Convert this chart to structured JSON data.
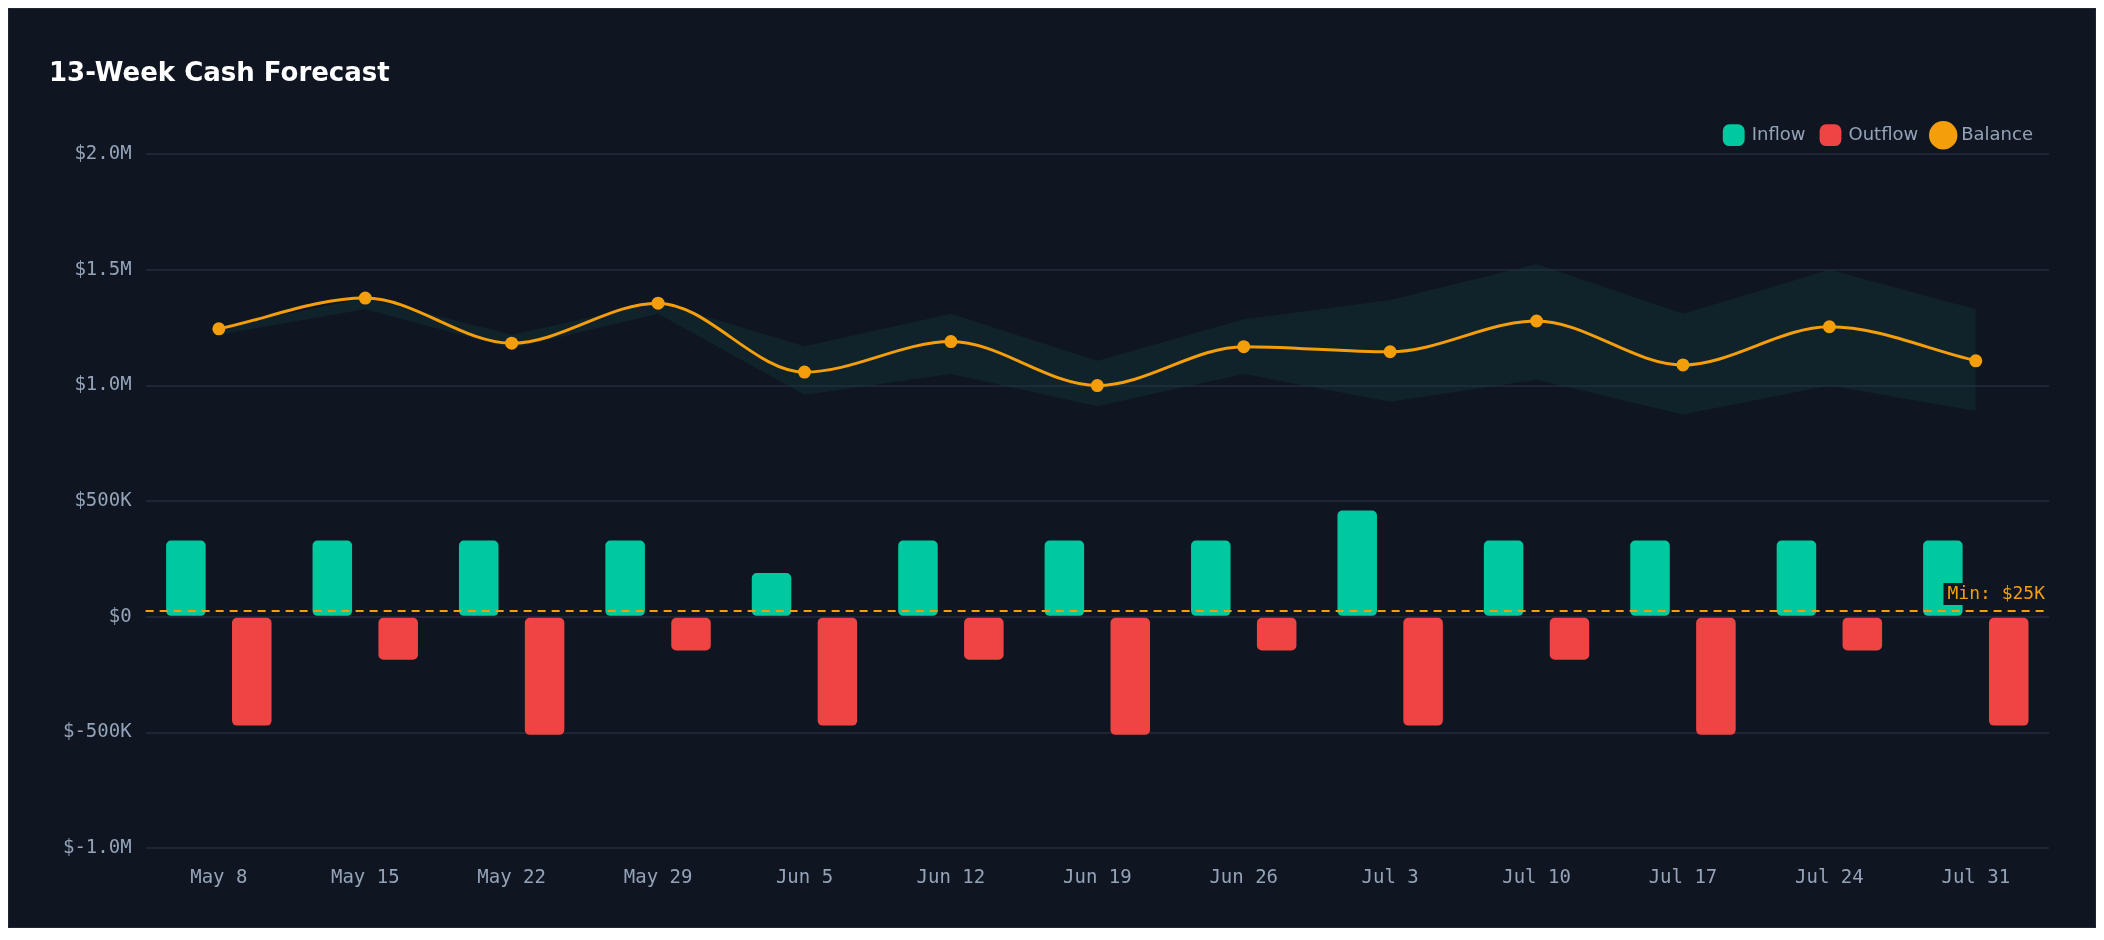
{
  "chart_data": {
    "type": "bar",
    "title": "13-Week Cash Forecast",
    "categories": [
      "May 8",
      "May 15",
      "May 22",
      "May 29",
      "Jun 5",
      "Jun 12",
      "Jun 19",
      "Jun 26",
      "Jul 3",
      "Jul 10",
      "Jul 17",
      "Jul 24",
      "Jul 31"
    ],
    "series": [
      {
        "name": "Inflow",
        "color": "#00c9a0",
        "values": [
          330000,
          330000,
          330000,
          330000,
          190000,
          330000,
          330000,
          330000,
          460000,
          330000,
          330000,
          330000,
          330000
        ]
      },
      {
        "name": "Outflow",
        "color": "#ef4444",
        "values": [
          -470000,
          -185000,
          -510000,
          -145000,
          -470000,
          -185000,
          -510000,
          -145000,
          -470000,
          -185000,
          -510000,
          -145000,
          -470000
        ]
      },
      {
        "name": "Balance",
        "type": "line",
        "color": "#f59e0b",
        "marker": "circle",
        "line_style": "solid",
        "values": [
          1245000,
          1378000,
          1183000,
          1356000,
          1058000,
          1190000,
          1000000,
          1168000,
          1146000,
          1279000,
          1089000,
          1254000,
          1107000
        ],
        "lower": [
          1220000,
          1330000,
          1160000,
          1310000,
          960000,
          1050000,
          910000,
          1050000,
          930000,
          1025000,
          875000,
          1000000,
          890000
        ],
        "upper": [
          1250000,
          1380000,
          1220000,
          1360000,
          1170000,
          1310000,
          1107000,
          1286000,
          1370000,
          1525000,
          1310000,
          1500000,
          1330000
        ]
      }
    ],
    "ylim": [
      -1000000,
      2000000
    ],
    "yticks": [
      {
        "value": -1000000,
        "label": "$-1.0M"
      },
      {
        "value": -500000,
        "label": "$-500K"
      },
      {
        "value": 0,
        "label": "$0"
      },
      {
        "value": 500000,
        "label": "$500K"
      },
      {
        "value": 1000000,
        "label": "$1.0M"
      },
      {
        "value": 1500000,
        "label": "$1.5M"
      },
      {
        "value": 2000000,
        "label": "$2.0M"
      }
    ],
    "grid": "y",
    "legend": "top right",
    "ref_lines": [
      {
        "axis": "y",
        "value": 25000,
        "label": "Min: $25K",
        "color": "#f59e0b",
        "line_style": "dashed"
      }
    ]
  }
}
